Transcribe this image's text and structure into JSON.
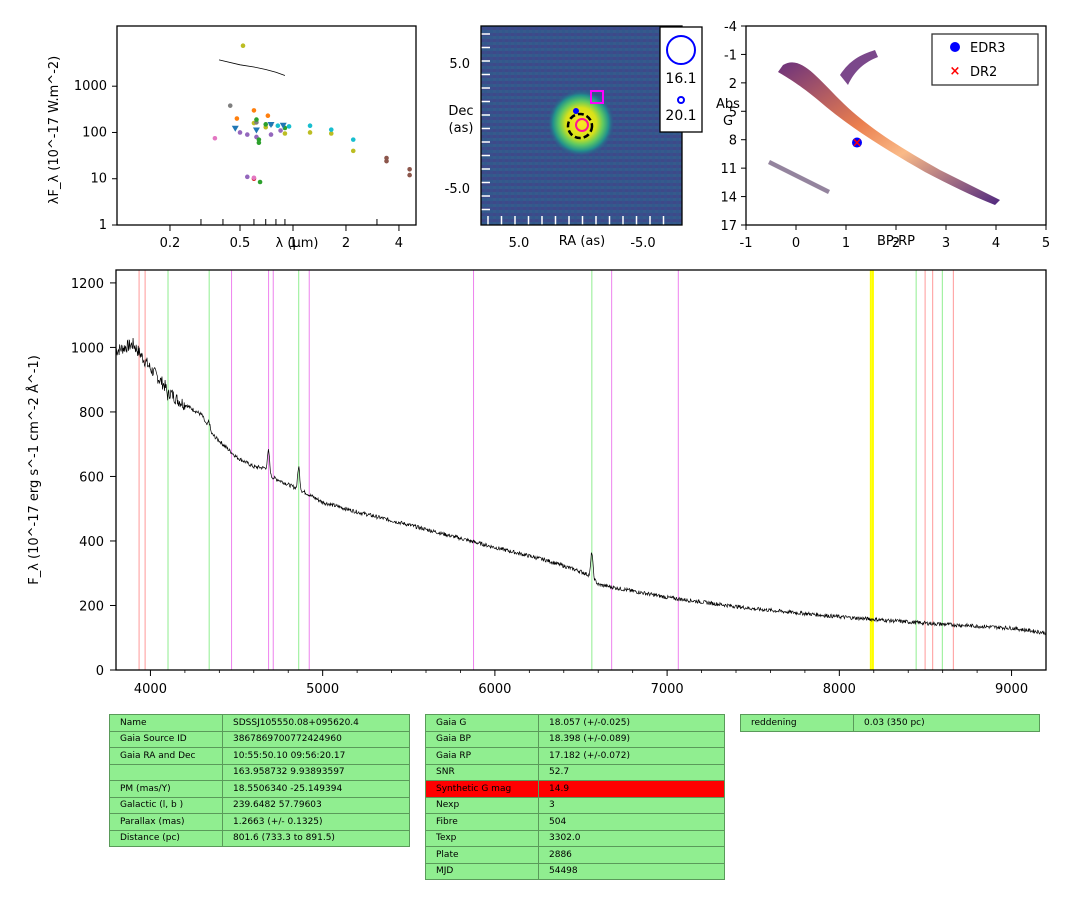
{
  "sed_panel": {
    "ylabel": "λF_λ (10^-17 W.m^-2)",
    "xlabel": "λ (μm)",
    "yticks": [
      "1000",
      "100",
      "10",
      "1"
    ],
    "xticks": [
      "0.2",
      "0.5",
      "1",
      "2",
      "4"
    ],
    "chart_data": {
      "type": "scatter",
      "x_scale": "log",
      "y_scale": "log",
      "xlim": [
        0.1,
        5
      ],
      "ylim": [
        1,
        20000
      ],
      "series": [
        {
          "color": "#bcbd22",
          "points": [
            [
              0.52,
              7500
            ],
            [
              0.6,
              160
            ],
            [
              0.7,
              130
            ],
            [
              0.9,
              95
            ],
            [
              1.25,
              100
            ],
            [
              1.65,
              95
            ],
            [
              2.2,
              40
            ]
          ]
        },
        {
          "color": "#7f7f7f",
          "points": [
            [
              0.44,
              380
            ],
            [
              0.62,
              165
            ],
            [
              0.75,
              150
            ]
          ]
        },
        {
          "color": "#ff7f0e",
          "points": [
            [
              0.48,
              200
            ],
            [
              0.6,
              300
            ],
            [
              0.72,
              230
            ]
          ]
        },
        {
          "color": "#9467bd",
          "points": [
            [
              0.5,
              100
            ],
            [
              0.55,
              90
            ],
            [
              0.62,
              80
            ],
            [
              0.75,
              90
            ],
            [
              0.85,
              110
            ],
            [
              0.55,
              11
            ]
          ]
        },
        {
          "color": "#2ca02c",
          "points": [
            [
              0.62,
              190
            ],
            [
              0.64,
              70
            ],
            [
              0.64,
              60
            ],
            [
              0.65,
              8.5
            ],
            [
              0.7,
              150
            ],
            [
              0.9,
              125
            ]
          ]
        },
        {
          "color": "#d62728",
          "points": [
            [
              0.6,
              10
            ]
          ]
        },
        {
          "color": "#e377c2",
          "points": [
            [
              0.36,
              75
            ],
            [
              0.6,
              10.5
            ]
          ]
        },
        {
          "color": "#17becf",
          "points": [
            [
              0.82,
              140
            ],
            [
              0.95,
              135
            ],
            [
              1.25,
              140
            ],
            [
              1.65,
              115
            ],
            [
              2.2,
              70
            ]
          ]
        },
        {
          "color": "#8c564b",
          "points": [
            [
              3.4,
              28
            ],
            [
              3.4,
              24
            ],
            [
              4.6,
              16
            ],
            [
              4.6,
              12
            ]
          ]
        }
      ],
      "markers_triangle": {
        "color": "#1f77b4",
        "points": [
          [
            0.47,
            120
          ],
          [
            0.62,
            110
          ],
          [
            0.75,
            145
          ],
          [
            0.88,
            140
          ]
        ]
      },
      "model_line": {
        "color": "#000000",
        "points": [
          [
            0.38,
            3700
          ],
          [
            0.5,
            2900
          ],
          [
            0.6,
            2600
          ],
          [
            0.7,
            2300
          ],
          [
            0.8,
            2000
          ],
          [
            0.9,
            1700
          ]
        ]
      }
    }
  },
  "image_panel": {
    "ylabel_line1": "Dec",
    "ylabel_line2": "(as)",
    "xlabel": "RA (as)",
    "yticks": [
      "5.0",
      "-5.0"
    ],
    "xticks": [
      "5.0",
      "-5.0"
    ],
    "legend": {
      "big_mag": "16.1",
      "small_mag": "20.1"
    }
  },
  "cmd_panel": {
    "ylabel_line1": "Abs",
    "ylabel_line2": "G",
    "xlabel": "BP-RP",
    "yticks": [
      "-4",
      "-1",
      "2",
      "5",
      "8",
      "11",
      "14",
      "17"
    ],
    "xticks": [
      "-1",
      "0",
      "1",
      "2",
      "3",
      "4",
      "5"
    ],
    "legend": [
      {
        "label": "EDR3",
        "color": "#0000ff",
        "marker": "circle"
      },
      {
        "label": "DR2",
        "color": "#ff0000",
        "marker": "x"
      }
    ],
    "chart_data": {
      "type": "scatter",
      "xlim": [
        -1,
        5
      ],
      "ylim": [
        17,
        -4
      ],
      "series": [
        {
          "name": "EDR3",
          "points": [
            [
              1.22,
              8.3
            ]
          ]
        },
        {
          "name": "DR2",
          "points": [
            [
              1.22,
              8.3
            ]
          ]
        }
      ]
    }
  },
  "spectrum_panel": {
    "ylabel": "F_λ (10^-17 erg s^-1 cm^-2 Å^-1)",
    "yticks": [
      "0",
      "200",
      "400",
      "600",
      "800",
      "1000",
      "1200"
    ],
    "xticks": [
      "4000",
      "5000",
      "6000",
      "7000",
      "8000",
      "9000"
    ],
    "chart_data": {
      "type": "line",
      "xlim": [
        3800,
        9200
      ],
      "ylim": [
        0,
        1240
      ],
      "x": [
        3800,
        3900,
        4000,
        4100,
        4150,
        4300,
        4340,
        4400,
        4500,
        4600,
        4686,
        4700,
        4800,
        4861,
        4900,
        5000,
        5200,
        5500,
        6000,
        6300,
        6500,
        6563,
        6600,
        7000,
        7500,
        8000,
        8500,
        9000,
        9200
      ],
      "y": [
        990,
        1010,
        935,
        870,
        840,
        790,
        740,
        710,
        660,
        630,
        625,
        600,
        575,
        560,
        550,
        520,
        490,
        450,
        380,
        340,
        305,
        290,
        265,
        225,
        190,
        165,
        145,
        130,
        115
      ],
      "emission_peaks": [
        [
          4340,
          770
        ],
        [
          4686,
          680
        ],
        [
          4861,
          630
        ],
        [
          6563,
          365
        ],
        [
          4101,
          850
        ]
      ],
      "vlines": [
        {
          "x": 3934,
          "color": "#ff9999"
        },
        {
          "x": 3969,
          "color": "#ff9999"
        },
        {
          "x": 4102,
          "color": "#90ee90"
        },
        {
          "x": 4341,
          "color": "#90ee90"
        },
        {
          "x": 4471,
          "color": "#ee82ee"
        },
        {
          "x": 4686,
          "color": "#ee82ee"
        },
        {
          "x": 4713,
          "color": "#ee82ee"
        },
        {
          "x": 4861,
          "color": "#90ee90"
        },
        {
          "x": 4922,
          "color": "#ee82ee"
        },
        {
          "x": 5876,
          "color": "#ee82ee"
        },
        {
          "x": 6563,
          "color": "#90ee90"
        },
        {
          "x": 6678,
          "color": "#ee82ee"
        },
        {
          "x": 7065,
          "color": "#ee82ee"
        },
        {
          "x": 8183,
          "color": "#ffff00"
        },
        {
          "x": 8195,
          "color": "#ffff00"
        },
        {
          "x": 8446,
          "color": "#90ee90"
        },
        {
          "x": 8498,
          "color": "#ff9999"
        },
        {
          "x": 8542,
          "color": "#ff9999"
        },
        {
          "x": 8598,
          "color": "#90ee90"
        },
        {
          "x": 8662,
          "color": "#ff9999"
        }
      ]
    }
  },
  "info_table_1": [
    [
      "Name",
      "SDSSJ105550.08+095620.4"
    ],
    [
      "Gaia Source ID",
      "3867869700772424960"
    ],
    [
      "Gaia RA and Dec",
      "10:55:50.10    09:56:20.17"
    ],
    [
      "",
      "163.958732    9.93893597"
    ],
    [
      "PM (mas/Y)",
      "18.5506340    -25.149394"
    ],
    [
      "Galactic (l, b )",
      "239.6482    57.79603"
    ],
    [
      "Parallax (mas)",
      "1.2663 (+/- 0.1325)"
    ],
    [
      "Distance (pc)",
      "801.6 (733.3 to 891.5)"
    ]
  ],
  "info_table_2": [
    [
      "Gaia G",
      "18.057 (+/-0.025)"
    ],
    [
      "Gaia BP",
      "18.398 (+/-0.089)"
    ],
    [
      "Gaia RP",
      "17.182 (+/-0.072)"
    ],
    [
      "SNR",
      "52.7"
    ],
    [
      "Synthetic G mag",
      "14.9"
    ],
    [
      "Nexp",
      "3"
    ],
    [
      "Fibre",
      "504"
    ],
    [
      "Texp",
      "3302.0"
    ],
    [
      "Plate",
      "2886"
    ],
    [
      "MJD",
      "54498"
    ]
  ],
  "info_table_3": [
    [
      "reddening",
      "0.03 (350 pc)"
    ]
  ]
}
